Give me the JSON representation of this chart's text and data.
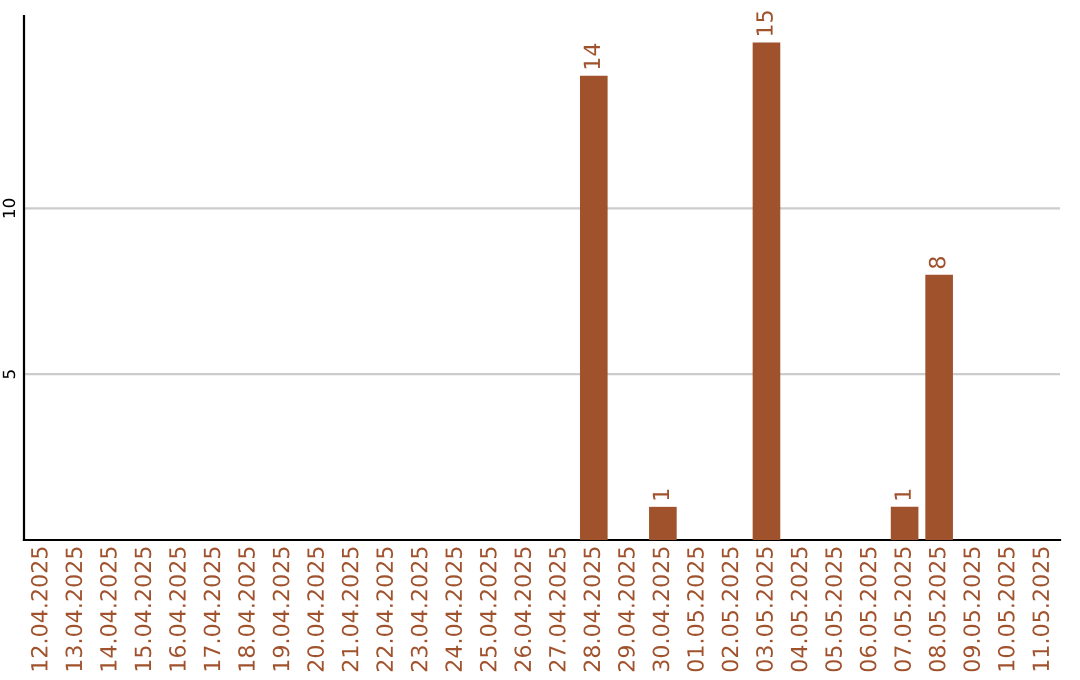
{
  "chart_data": {
    "type": "bar",
    "categories": [
      "12.04.2025",
      "13.04.2025",
      "14.04.2025",
      "15.04.2025",
      "16.04.2025",
      "17.04.2025",
      "18.04.2025",
      "19.04.2025",
      "20.04.2025",
      "21.04.2025",
      "22.04.2025",
      "23.04.2025",
      "24.04.2025",
      "25.04.2025",
      "26.04.2025",
      "27.04.2025",
      "28.04.2025",
      "29.04.2025",
      "30.04.2025",
      "01.05.2025",
      "02.05.2025",
      "03.05.2025",
      "04.05.2025",
      "05.05.2025",
      "06.05.2025",
      "07.05.2025",
      "08.05.2025",
      "09.05.2025",
      "10.05.2025",
      "11.05.2025"
    ],
    "values": [
      0,
      0,
      0,
      0,
      0,
      0,
      0,
      0,
      0,
      0,
      0,
      0,
      0,
      0,
      0,
      0,
      14,
      0,
      1,
      0,
      0,
      15,
      0,
      0,
      0,
      1,
      8,
      0,
      0,
      0
    ],
    "value_labels": [
      null,
      null,
      null,
      null,
      null,
      null,
      null,
      null,
      null,
      null,
      null,
      null,
      null,
      null,
      null,
      null,
      "14",
      null,
      "1",
      null,
      null,
      "15",
      null,
      null,
      null,
      "1",
      "8",
      null,
      null,
      null
    ],
    "color": "#a0522d",
    "ylim": [
      0,
      15.8
    ],
    "yticks": [
      5,
      10
    ],
    "grid": "y"
  }
}
